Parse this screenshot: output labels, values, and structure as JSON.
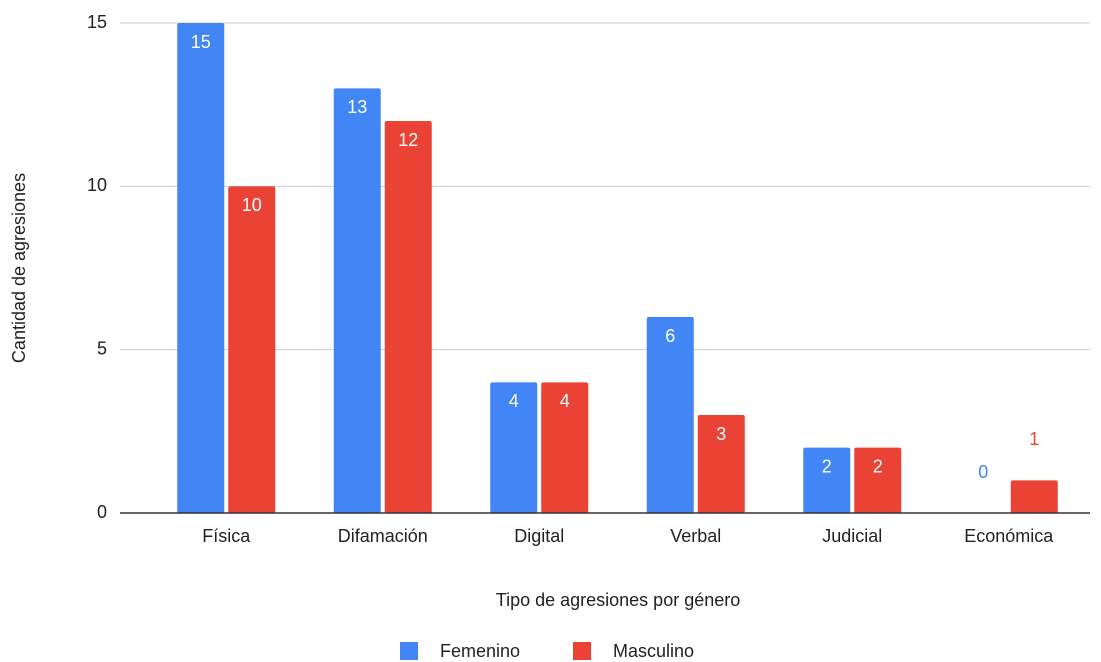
{
  "chart_data": {
    "type": "bar",
    "categories": [
      "Física",
      "Difamación",
      "Digital",
      "Verbal",
      "Judicial",
      "Económica"
    ],
    "series": [
      {
        "name": "Femenino",
        "color": "#4285f4",
        "values": [
          15,
          13,
          4,
          6,
          2,
          0
        ]
      },
      {
        "name": "Masculino",
        "color": "#ea4335",
        "values": [
          10,
          12,
          4,
          3,
          2,
          1
        ]
      }
    ],
    "xlabel": "Tipo de agresiones por género",
    "ylabel": "Cantidad de agresiones",
    "ylim": [
      0,
      15
    ],
    "yticks": [
      0,
      5,
      10,
      15
    ],
    "grid": true,
    "legend": "bottom"
  }
}
